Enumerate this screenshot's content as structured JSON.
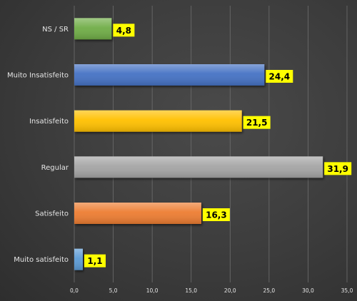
{
  "chart_data": {
    "type": "bar",
    "orientation": "horizontal",
    "categories": [
      "NS / SR",
      "Muito Insatisfeito",
      "Insatisfeito",
      "Regular",
      "Satisfeito",
      "Muito satisfeito"
    ],
    "values": [
      4.8,
      24.4,
      21.5,
      31.9,
      16.3,
      1.1
    ],
    "data_labels": [
      "4,8",
      "24,4",
      "21,5",
      "31,9",
      "16,3",
      "1,1"
    ],
    "bar_colors": [
      "#70ad47",
      "#4472c4",
      "#ffc000",
      "#a5a5a5",
      "#ed7d31",
      "#5b9bd5"
    ],
    "x_ticks": [
      0,
      5,
      10,
      15,
      20,
      25,
      30,
      35
    ],
    "x_tick_labels": [
      "0,0",
      "5,0",
      "10,0",
      "15,0",
      "20,0",
      "25,0",
      "30,0",
      "35,0"
    ],
    "xlim": [
      0,
      35
    ],
    "grid": "vertical",
    "legend": "none",
    "data_label_background": "#ffff00"
  }
}
